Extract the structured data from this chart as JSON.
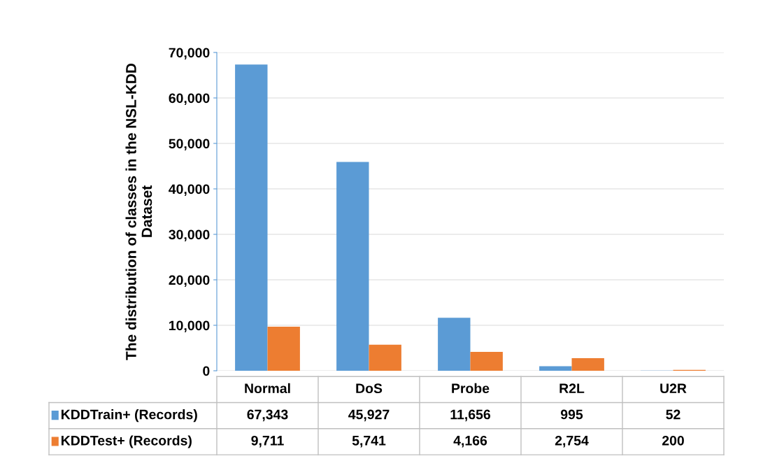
{
  "chart_data": {
    "type": "bar",
    "ylabel": "The distribution of classes in the NSL-KDD\nDataset",
    "categories": [
      "Normal",
      "DoS",
      "Probe",
      "R2L",
      "U2R"
    ],
    "series": [
      {
        "name": "KDDTrain+ (Records)",
        "color": "#5b9bd5",
        "values": [
          67343,
          45927,
          11656,
          995,
          52
        ],
        "value_labels": [
          "67,343",
          "45,927",
          "11,656",
          "995",
          "52"
        ]
      },
      {
        "name": "KDDTest+ (Records)",
        "color": "#ed7d31",
        "values": [
          9711,
          5741,
          4166,
          2754,
          200
        ],
        "value_labels": [
          "9,711",
          "5,741",
          "4,166",
          "2,754",
          "200"
        ]
      }
    ],
    "ylim": [
      0,
      70000
    ],
    "yticks": [
      {
        "value": 0,
        "label": "0"
      },
      {
        "value": 10000,
        "label": "10,000"
      },
      {
        "value": 20000,
        "label": "20,000"
      },
      {
        "value": 30000,
        "label": "30,000"
      },
      {
        "value": 40000,
        "label": "40,000"
      },
      {
        "value": 50000,
        "label": "50,000"
      },
      {
        "value": 60000,
        "label": "60,000"
      },
      {
        "value": 70000,
        "label": "70,000"
      }
    ],
    "grid": "y",
    "legend": "bottom left"
  }
}
